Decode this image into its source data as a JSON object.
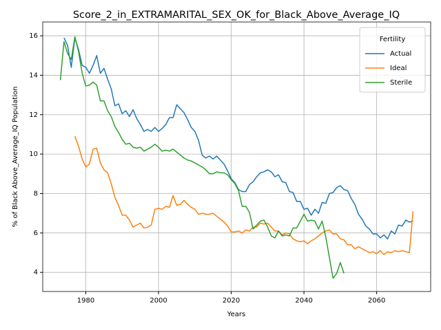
{
  "chart_data": {
    "type": "line",
    "title": "Score_2_in_EXTRAMARITAL_SEX_OK_for_Black_Above_Average_IQ",
    "xlabel": "Years",
    "ylabel": "% of Black Above_Average_IQ Population",
    "legend_title": "Fertility",
    "legend": "upper right",
    "grid": true,
    "x": [
      1973,
      1974,
      1975,
      1976,
      1977,
      1978,
      1979,
      1980,
      1981,
      1982,
      1983,
      1984,
      1985,
      1986,
      1987,
      1988,
      1989,
      1990,
      1991,
      1992,
      1993,
      1994,
      1995,
      1996,
      1997,
      1998,
      1999,
      2000,
      2001,
      2002,
      2003,
      2004,
      2005,
      2006,
      2007,
      2008,
      2009,
      2010,
      2011,
      2012,
      2013,
      2014,
      2015,
      2016,
      2017,
      2018,
      2019,
      2020,
      2021,
      2022,
      2023,
      2024,
      2025,
      2026,
      2027,
      2028,
      2029,
      2030,
      2031,
      2032,
      2033,
      2034,
      2035,
      2036,
      2037,
      2038,
      2039,
      2040,
      2041,
      2042,
      2043,
      2044,
      2045,
      2046,
      2047,
      2048,
      2049,
      2050,
      2051,
      2052,
      2053,
      2054,
      2055,
      2056,
      2057,
      2058,
      2059,
      2060,
      2061,
      2062,
      2063,
      2064,
      2065,
      2066,
      2067,
      2068,
      2069,
      2070
    ],
    "series": [
      {
        "name": "Actual",
        "color": "#1f77b4",
        "values": [
          null,
          15.9,
          15.5,
          14.4,
          15.9,
          15.3,
          14.5,
          14.4,
          14.1,
          14.5,
          15.0,
          14.1,
          14.35,
          13.8,
          13.3,
          12.45,
          12.55,
          12.05,
          12.2,
          11.9,
          12.25,
          11.8,
          11.5,
          11.15,
          11.25,
          11.15,
          11.35,
          11.15,
          11.3,
          11.5,
          11.85,
          11.85,
          12.5,
          12.3,
          12.1,
          11.75,
          11.35,
          11.15,
          10.7,
          9.95,
          9.8,
          9.9,
          9.75,
          9.9,
          9.7,
          9.5,
          9.15,
          8.75,
          8.55,
          8.2,
          8.1,
          8.1,
          8.45,
          8.6,
          8.85,
          9.05,
          9.1,
          9.2,
          9.1,
          8.85,
          8.95,
          8.6,
          8.55,
          8.1,
          8.05,
          7.6,
          7.6,
          7.2,
          7.25,
          6.9,
          7.2,
          7.0,
          7.55,
          7.5,
          8.0,
          8.05,
          8.3,
          8.4,
          8.2,
          8.15,
          7.75,
          7.45,
          6.95,
          6.7,
          6.35,
          6.2,
          5.95,
          5.95,
          5.75,
          5.9,
          5.7,
          6.1,
          5.95,
          6.4,
          6.35,
          6.65,
          6.55,
          6.6
        ]
      },
      {
        "name": "Ideal",
        "color": "#ff7f0e",
        "values": [
          null,
          null,
          null,
          null,
          10.9,
          10.4,
          9.75,
          9.35,
          9.5,
          10.25,
          10.3,
          9.55,
          9.2,
          9.05,
          8.5,
          7.8,
          7.4,
          6.9,
          6.9,
          6.65,
          6.3,
          6.4,
          6.5,
          6.25,
          6.3,
          6.4,
          7.2,
          7.25,
          7.2,
          7.35,
          7.3,
          7.9,
          7.4,
          7.45,
          7.65,
          7.45,
          7.3,
          7.2,
          6.95,
          7.0,
          6.95,
          6.95,
          7.0,
          6.85,
          6.7,
          6.55,
          6.35,
          6.05,
          6.05,
          6.1,
          6.0,
          6.15,
          6.1,
          6.3,
          6.3,
          6.5,
          6.45,
          6.5,
          6.3,
          6.1,
          6.1,
          5.9,
          6.0,
          5.95,
          5.7,
          5.6,
          5.55,
          5.6,
          5.45,
          5.6,
          5.7,
          5.85,
          6.0,
          6.1,
          6.15,
          5.95,
          5.95,
          5.7,
          5.65,
          5.4,
          5.4,
          5.2,
          5.3,
          5.2,
          5.1,
          5.0,
          5.05,
          4.95,
          5.1,
          4.9,
          5.05,
          5.0,
          5.1,
          5.05,
          5.1,
          5.05,
          5.0,
          7.1
        ]
      },
      {
        "name": "Sterile",
        "color": "#2ca02c",
        "values": [
          13.75,
          15.7,
          15.1,
          14.8,
          15.95,
          15.2,
          14.1,
          13.45,
          13.5,
          13.65,
          13.5,
          12.7,
          12.7,
          12.2,
          11.9,
          11.4,
          11.1,
          10.75,
          10.5,
          10.55,
          10.35,
          10.3,
          10.35,
          10.15,
          10.25,
          10.35,
          10.5,
          10.35,
          10.15,
          10.2,
          10.15,
          10.25,
          10.1,
          9.95,
          9.8,
          9.7,
          9.65,
          9.55,
          9.45,
          9.35,
          9.2,
          9.0,
          9.0,
          9.1,
          9.05,
          9.05,
          8.95,
          8.7,
          8.5,
          8.15,
          7.35,
          7.35,
          7.05,
          6.2,
          6.4,
          6.6,
          6.65,
          6.3,
          5.85,
          5.75,
          6.1,
          5.85,
          5.9,
          5.85,
          6.25,
          6.25,
          6.6,
          6.95,
          6.6,
          6.65,
          6.6,
          6.2,
          6.6,
          5.8,
          4.75,
          3.7,
          3.95,
          4.5,
          3.95,
          null,
          null,
          null,
          null,
          null,
          null,
          null,
          null,
          null,
          null,
          null,
          null,
          null,
          null,
          null,
          null,
          null,
          null,
          null
        ]
      }
    ],
    "xlim": [
      1968.15,
      2074.85
    ],
    "xticks": [
      1980,
      2000,
      2020,
      2040,
      2060
    ],
    "ylim": [
      3.03,
      16.7
    ],
    "yticks": [
      4,
      6,
      8,
      10,
      12,
      14,
      16
    ]
  }
}
